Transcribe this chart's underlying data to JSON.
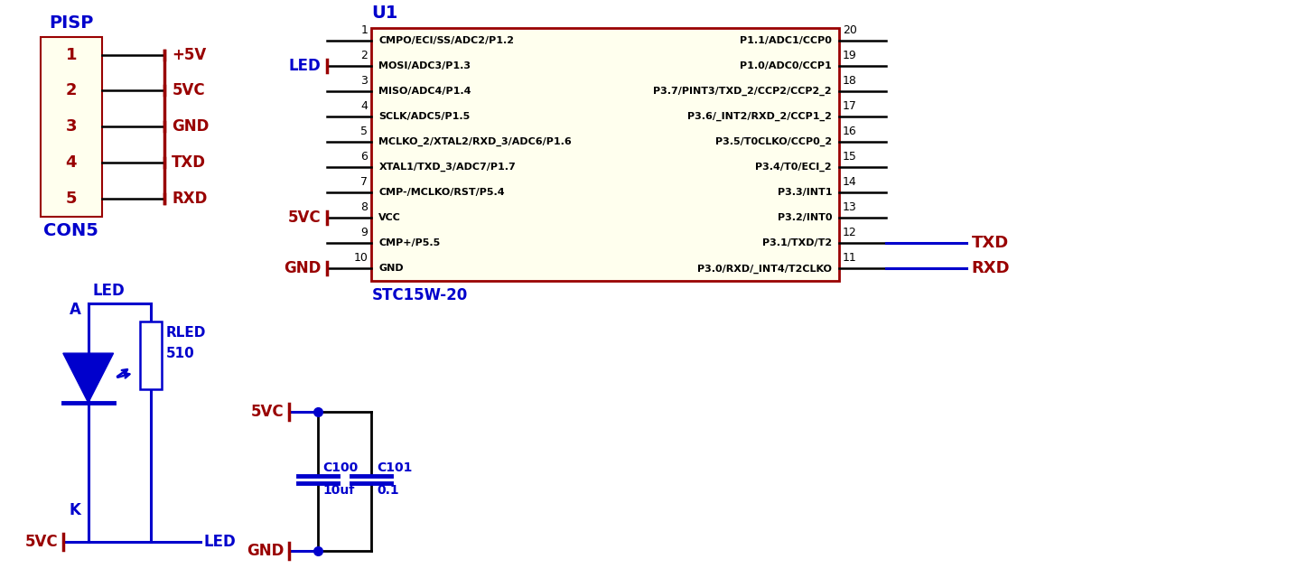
{
  "bg_color": "#ffffff",
  "yellow_fill": "#ffffee",
  "dark_red": "#990000",
  "blue": "#0000cc",
  "black": "#000000",
  "pisp_label": "PISP",
  "con5_label": "CON5",
  "pisp_pins": [
    "1",
    "2",
    "3",
    "4",
    "5"
  ],
  "pisp_signals": [
    "+5V",
    "5VC",
    "GND",
    "TXD",
    "RXD"
  ],
  "u1_label": "U1",
  "u1_sublabel": "STC15W-20",
  "u1_left_pins": [
    "1",
    "2",
    "3",
    "4",
    "5",
    "6",
    "7",
    "8",
    "9",
    "10"
  ],
  "u1_left_signals": [
    "CMPO/ECI/SS/ADC2/P1.2",
    "MOSI/ADC3/P1.3",
    "MISO/ADC4/P1.4",
    "SCLK/ADC5/P1.5",
    "MCLKO_2/XTAL2/RXD_3/ADC6/P1.6",
    "XTAL1/TXD_3/ADC7/P1.7",
    "CMP-/MCLKO/RST/P5.4",
    "VCC",
    "CMP+/P5.5",
    "GND"
  ],
  "u1_right_pins": [
    "20",
    "19",
    "18",
    "17",
    "16",
    "15",
    "14",
    "13",
    "12",
    "11"
  ],
  "u1_right_signals": [
    "P1.1/ADC1/CCP0",
    "P1.0/ADC0/CCP1",
    "P3.7/PINT3/TXD_2/CCP2/CCP2_2",
    "P3.6/_INT2/RXD_2/CCP1_2",
    "P3.5/T0CLKO/CCP0_2",
    "P3.4/T0/ECI_2",
    "P3.3/INT1",
    "P3.2/INT0",
    "P3.1/TXD/T2",
    "P3.0/RXD/_INT4/T2CLKO"
  ],
  "u1_left_connections": {
    "2": "LED",
    "8": "5VC",
    "10": "GND"
  },
  "u1_right_connections": {
    "12": "TXD",
    "11": "RXD"
  }
}
